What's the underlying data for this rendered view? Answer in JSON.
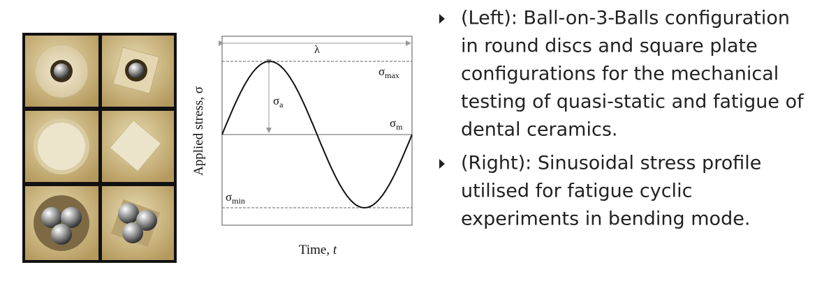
{
  "diagram": {
    "wavelength": "λ",
    "sigma": "σ",
    "max_sub": "max",
    "a_sub": "a",
    "m_sub": "m",
    "min_sub": "min",
    "y_label": "Applied stress, σ",
    "x_label_text": "Time,",
    "x_label_var": "t"
  },
  "bullets": [
    {
      "lines": [
        "(Left): Ball-on-3-Balls configuration",
        "in round discs and square plate",
        "configurations for the mechanical",
        "testing of quasi-static and fatigue of",
        "dental ceramics."
      ]
    },
    {
      "lines": [
        "(Right): Sinusoidal stress profile",
        "utilised for fatigue cyclic",
        "experiments in bending mode."
      ]
    }
  ]
}
